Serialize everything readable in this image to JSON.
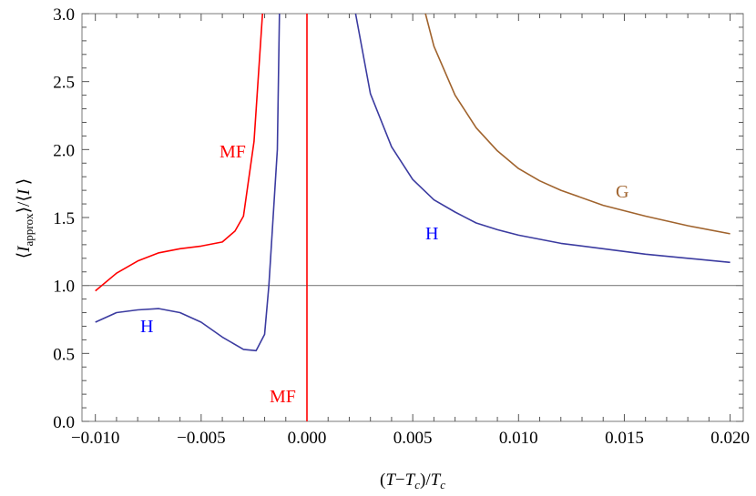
{
  "chart_data": {
    "type": "line",
    "title": "",
    "xlabel": "(T−T_c)/T_c",
    "ylabel": "⟨I_approx⟩/⟨I⟩",
    "xlim": [
      -0.0105,
      0.0206
    ],
    "ylim": [
      0.0,
      3.0
    ],
    "grid": false,
    "legend": "none (inline annotations)",
    "x_ticks": [
      "−0.010",
      "−0.005",
      "0.000",
      "0.005",
      "0.010",
      "0.015",
      "0.020"
    ],
    "x_tick_values": [
      -0.01,
      -0.005,
      0.0,
      0.005,
      0.01,
      0.015,
      0.02
    ],
    "y_ticks": [
      "0.0",
      "0.5",
      "1.0",
      "1.5",
      "2.0",
      "2.5",
      "3.0"
    ],
    "y_tick_values": [
      0.0,
      0.5,
      1.0,
      1.5,
      2.0,
      2.5,
      3.0
    ],
    "reference_lines": [
      {
        "orientation": "horizontal",
        "y": 1.0,
        "color": "#808080"
      },
      {
        "orientation": "vertical",
        "x": 0.0,
        "color": "#ff0000",
        "label": "MF"
      }
    ],
    "series": [
      {
        "name": "MF",
        "color": "#ff0000",
        "x": [
          -0.01,
          -0.009,
          -0.008,
          -0.007,
          -0.006,
          -0.005,
          -0.004,
          -0.0034,
          -0.003,
          -0.0025,
          -0.0021
        ],
        "y": [
          0.96,
          1.09,
          1.18,
          1.24,
          1.27,
          1.29,
          1.32,
          1.4,
          1.51,
          2.06,
          3.0
        ]
      },
      {
        "name": "H (T<Tc)",
        "color": "#3b3ba0",
        "x": [
          -0.01,
          -0.009,
          -0.008,
          -0.007,
          -0.006,
          -0.005,
          -0.004,
          -0.003,
          -0.0024,
          -0.002,
          -0.0018,
          -0.0014,
          -0.0013
        ],
        "y": [
          0.73,
          0.8,
          0.82,
          0.83,
          0.8,
          0.73,
          0.62,
          0.53,
          0.52,
          0.64,
          1.0,
          2.0,
          3.0
        ]
      },
      {
        "name": "H (T>Tc)",
        "color": "#3b3ba0",
        "x": [
          0.0023,
          0.003,
          0.004,
          0.005,
          0.006,
          0.007,
          0.008,
          0.009,
          0.01,
          0.012,
          0.014,
          0.016,
          0.018,
          0.02
        ],
        "y": [
          3.0,
          2.41,
          2.02,
          1.78,
          1.63,
          1.54,
          1.46,
          1.41,
          1.37,
          1.31,
          1.27,
          1.23,
          1.2,
          1.17
        ]
      },
      {
        "name": "G",
        "color": "#a0632d",
        "x": [
          0.0056,
          0.006,
          0.007,
          0.008,
          0.009,
          0.01,
          0.011,
          0.012,
          0.014,
          0.016,
          0.018,
          0.02
        ],
        "y": [
          3.0,
          2.76,
          2.4,
          2.16,
          1.99,
          1.86,
          1.77,
          1.7,
          1.59,
          1.51,
          1.44,
          1.38
        ]
      }
    ],
    "annotations": [
      {
        "text": "MF",
        "x": -0.0034,
        "y": 1.98,
        "color": "#ff0000"
      },
      {
        "text": "H",
        "x": -0.0075,
        "y": 0.7,
        "color": "#0000ff"
      },
      {
        "text": "MF",
        "x": -0.0009,
        "y": 0.19,
        "color": "#ff0000"
      },
      {
        "text": "H",
        "x": 0.006,
        "y": 1.4,
        "color": "#0000ff"
      },
      {
        "text": "G",
        "x": 0.015,
        "y": 1.69,
        "color": "#a0632d"
      }
    ]
  },
  "labels": {
    "xlabel_parts": [
      "(",
      "T",
      "−",
      "T",
      "c",
      ")/",
      "T",
      "c"
    ],
    "ylabel_parts": [
      "⟨",
      "I",
      "approx",
      "⟩/⟨",
      "I",
      " ⟩"
    ],
    "mf_left": "MF",
    "h_left": "H",
    "mf_vertical": "MF",
    "h_right": "H",
    "g_right": "G"
  }
}
